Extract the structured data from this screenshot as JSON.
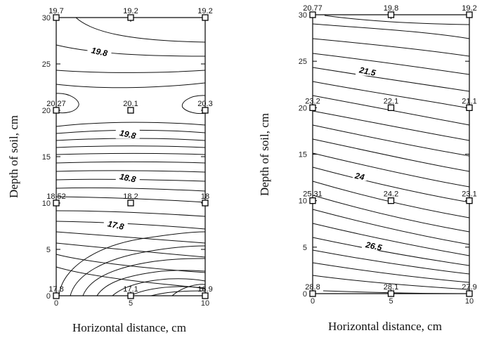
{
  "chart_data": [
    {
      "type": "contour",
      "xlabel": "Horizontal distance, cm",
      "ylabel": "Depth of soil, cm",
      "x_ticks": [
        0,
        5,
        10
      ],
      "y_ticks": [
        0,
        5,
        10,
        15,
        20,
        25,
        30
      ],
      "xlim": [
        0,
        10
      ],
      "ylim": [
        0,
        30
      ],
      "points": [
        {
          "x": 0,
          "y": 30,
          "value": "19.7"
        },
        {
          "x": 5,
          "y": 30,
          "value": "19.2"
        },
        {
          "x": 10,
          "y": 30,
          "value": "19.2"
        },
        {
          "x": 0,
          "y": 20,
          "value": "20.27"
        },
        {
          "x": 5,
          "y": 20,
          "value": "20.1"
        },
        {
          "x": 10,
          "y": 20,
          "value": "20.3"
        },
        {
          "x": 0,
          "y": 10,
          "value": "18.52"
        },
        {
          "x": 5,
          "y": 10,
          "value": "18.2"
        },
        {
          "x": 10,
          "y": 10,
          "value": "18"
        },
        {
          "x": 0,
          "y": 0,
          "value": "17.8"
        },
        {
          "x": 5,
          "y": 0,
          "value": "17.1"
        },
        {
          "x": 10,
          "y": 0,
          "value": "16.9"
        }
      ],
      "contour_labels": [
        {
          "x": 2.9,
          "y": 26.3,
          "text": "19.8"
        },
        {
          "x": 4.8,
          "y": 17.4,
          "text": "19.8"
        },
        {
          "x": 4.8,
          "y": 12.7,
          "text": "18.8"
        },
        {
          "x": 4.0,
          "y": 7.6,
          "text": "17.8"
        }
      ]
    },
    {
      "type": "contour",
      "xlabel": "Horizontal distance, cm",
      "ylabel": "Depth of soil, cm",
      "x_ticks": [
        0,
        5,
        10
      ],
      "y_ticks": [
        0,
        5,
        10,
        15,
        20,
        25,
        30
      ],
      "xlim": [
        0,
        10
      ],
      "ylim": [
        0,
        30
      ],
      "points": [
        {
          "x": 0,
          "y": 30,
          "value": "20.77"
        },
        {
          "x": 5,
          "y": 30,
          "value": "19.8"
        },
        {
          "x": 10,
          "y": 30,
          "value": "19.2"
        },
        {
          "x": 0,
          "y": 20,
          "value": "23.2"
        },
        {
          "x": 5,
          "y": 20,
          "value": "22.1"
        },
        {
          "x": 10,
          "y": 20,
          "value": "21.1"
        },
        {
          "x": 0,
          "y": 10,
          "value": "25.31"
        },
        {
          "x": 5,
          "y": 10,
          "value": "24.2"
        },
        {
          "x": 10,
          "y": 10,
          "value": "23.1"
        },
        {
          "x": 0,
          "y": 0,
          "value": "28.8"
        },
        {
          "x": 5,
          "y": 0,
          "value": "28.1"
        },
        {
          "x": 10,
          "y": 0,
          "value": "27.9"
        }
      ],
      "contour_labels": [
        {
          "x": 3.5,
          "y": 23.9,
          "text": "21.5"
        },
        {
          "x": 3.0,
          "y": 12.6,
          "text": "24"
        },
        {
          "x": 3.9,
          "y": 5.1,
          "text": "26.5"
        }
      ]
    }
  ]
}
